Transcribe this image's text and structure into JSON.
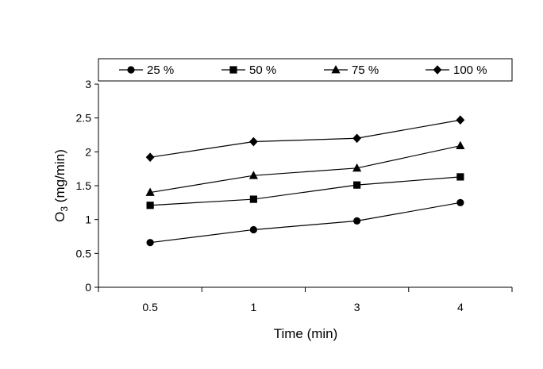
{
  "chart_data": {
    "type": "line",
    "categories": [
      "0.5",
      "1",
      "3",
      "4"
    ],
    "series": [
      {
        "name": "25 %",
        "marker": "circle",
        "values": [
          0.66,
          0.85,
          0.98,
          1.25
        ]
      },
      {
        "name": "50 %",
        "marker": "square",
        "values": [
          1.21,
          1.3,
          1.51,
          1.63
        ]
      },
      {
        "name": "75 %",
        "marker": "triangle",
        "values": [
          1.4,
          1.65,
          1.76,
          2.09
        ]
      },
      {
        "name": "100 %",
        "marker": "diamond",
        "values": [
          1.92,
          2.15,
          2.2,
          2.47
        ]
      }
    ],
    "xlabel": "Time (min)",
    "ylabel_main": "O",
    "ylabel_sub": "3",
    "ylabel_rest": " (mg/min)",
    "ylim": [
      0,
      3
    ],
    "yticks": [
      0,
      0.5,
      1,
      1.5,
      2,
      2.5,
      3
    ],
    "ytick_labels": [
      "0",
      "0.5",
      "1",
      "1.5",
      "2",
      "2.5",
      "3"
    ],
    "grid": false,
    "legend_position": "top",
    "line_color": "#000000"
  }
}
